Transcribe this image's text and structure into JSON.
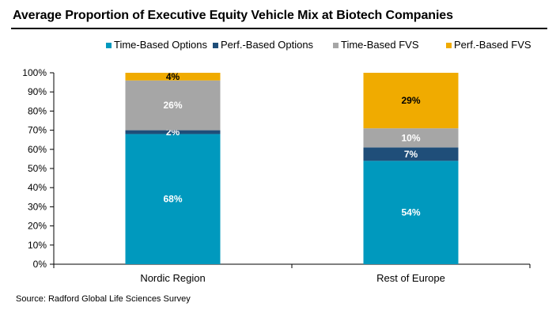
{
  "title": "Average Proportion of Executive Equity Vehicle Mix at Biotech Companies",
  "source": "Source: Radford Global Life Sciences Survey",
  "chart_data": {
    "type": "bar",
    "stacked": true,
    "categories": [
      "Nordic Region",
      "Rest of Europe"
    ],
    "series": [
      {
        "name": "Time-Based Options",
        "values": [
          68,
          54
        ],
        "color": "#0099BE",
        "label_color": "#ffffff"
      },
      {
        "name": "Perf.-Based Options",
        "values": [
          2,
          7
        ],
        "color": "#1F4E79",
        "label_color": "#ffffff"
      },
      {
        "name": "Time-Based FVS",
        "values": [
          26,
          10
        ],
        "color": "#A6A6A6",
        "label_color": "#ffffff"
      },
      {
        "name": "Perf.-Based FVS",
        "values": [
          4,
          29
        ],
        "color": "#F0AB00",
        "label_color": "#000000"
      }
    ],
    "yticks": [
      "0%",
      "10%",
      "20%",
      "30%",
      "40%",
      "50%",
      "60%",
      "70%",
      "80%",
      "90%",
      "100%"
    ],
    "ylim": [
      0,
      100
    ],
    "unit": "%",
    "legend_position": "top",
    "grid": false
  }
}
